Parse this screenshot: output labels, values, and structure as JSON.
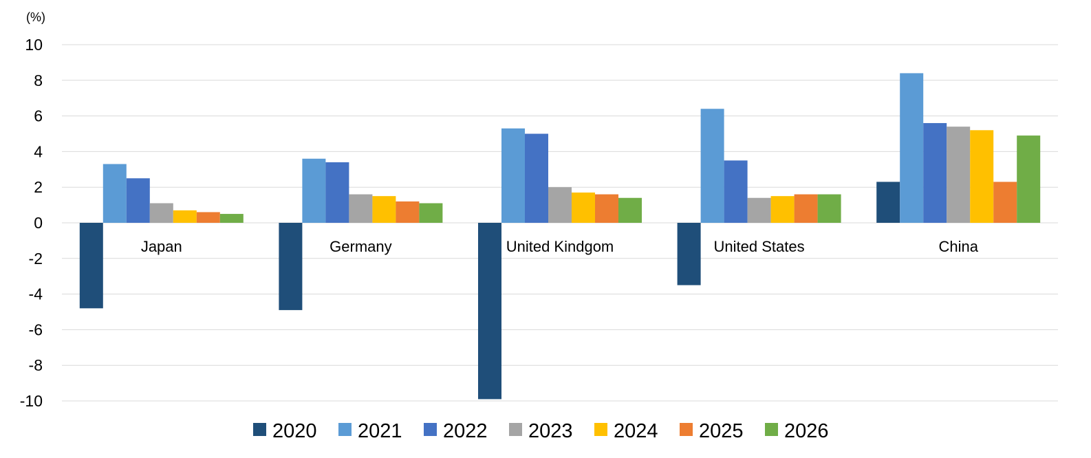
{
  "chart_data": {
    "type": "bar",
    "unit_label": "(%)",
    "categories": [
      "Japan",
      "Germany",
      "United Kindgom",
      "United States",
      "China"
    ],
    "series": [
      {
        "name": "2020",
        "color": "#1f4e79",
        "values": [
          -4.8,
          -4.9,
          -9.9,
          -3.5,
          2.3
        ]
      },
      {
        "name": "2021",
        "color": "#5b9bd5",
        "values": [
          3.3,
          3.6,
          5.3,
          6.4,
          8.4
        ]
      },
      {
        "name": "2022",
        "color": "#4472c4",
        "values": [
          2.5,
          3.4,
          5.0,
          3.5,
          5.6
        ]
      },
      {
        "name": "2023",
        "color": "#a5a5a5",
        "values": [
          1.1,
          1.6,
          2.0,
          1.4,
          5.4
        ]
      },
      {
        "name": "2024",
        "color": "#ffc000",
        "values": [
          0.7,
          1.5,
          1.7,
          1.5,
          5.2
        ]
      },
      {
        "name": "2025",
        "color": "#ed7d31",
        "values": [
          0.6,
          1.2,
          1.6,
          1.6,
          2.3
        ]
      },
      {
        "name": "2026",
        "color": "#70ad47",
        "values": [
          0.5,
          1.1,
          1.4,
          1.6,
          4.9
        ]
      }
    ],
    "ylim": [
      -10,
      10
    ],
    "yticks": [
      10,
      8,
      6,
      4,
      2,
      0,
      -2,
      -4,
      -6,
      -8,
      -10
    ],
    "ytick_labels": [
      "10",
      "8",
      "6",
      "4",
      "2",
      "0",
      "-2",
      "-4",
      "-6",
      "-8",
      "-10"
    ],
    "grid": true,
    "legend_position": "bottom",
    "title": "",
    "xlabel": "",
    "ylabel": ""
  }
}
